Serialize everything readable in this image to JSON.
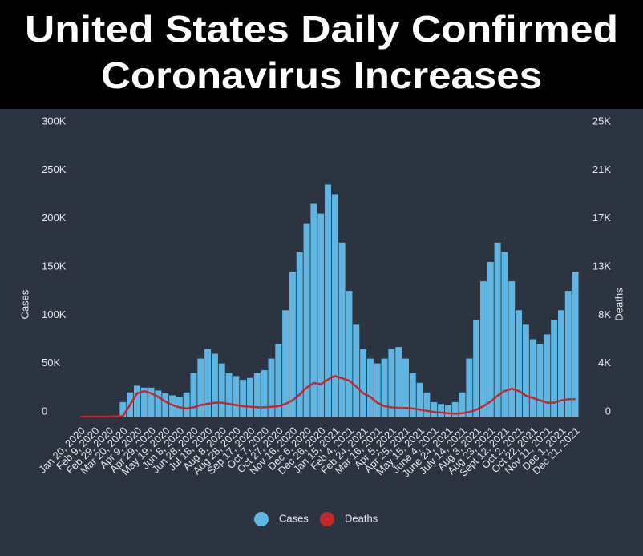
{
  "chart_data": {
    "type": "combo",
    "title_lines": [
      "United States Daily Confirmed",
      "Coronavirus Increases"
    ],
    "y_label": "Cases",
    "y2_label": "Deaths",
    "categories": [
      "Jan 20, 2020",
      null,
      "Feb 9, 2020",
      null,
      "Feb 29, 2020",
      null,
      "Mar 20, 2020",
      null,
      "Apr 9, 2020",
      null,
      "Apr 29, 2020",
      null,
      "May 19, 2020",
      null,
      "Jun 8, 2020",
      null,
      "Jun 28, 2020",
      null,
      "Jul 18, 2020",
      null,
      "Aug 8, 2020",
      null,
      "Aug 28, 2020",
      null,
      "Sep 17, 2020",
      null,
      "Oct 7, 2020",
      null,
      "Oct 27, 2020",
      null,
      "Nov 16, 2020",
      null,
      "Dec 6, 2020",
      null,
      "Dec 26, 2020",
      null,
      "Jan 15, 2021",
      null,
      "Feb 4, 2021",
      null,
      "Feb 24, 2021",
      null,
      "Mar 16, 2021",
      null,
      "Apr 5, 2021",
      null,
      "Apr 25, 2021",
      null,
      "May 15, 2021",
      null,
      "June 4, 2021",
      null,
      "June 24, 2021",
      null,
      "July 14, 2021",
      null,
      "Aug 3, 2021",
      null,
      "Aug 23, 2021",
      null,
      "Sept 12, 2021",
      null,
      "Oct 2, 2021",
      null,
      "Oct 22, 2021",
      null,
      "Nov 11, 2021",
      null,
      "Dec 1, 2021",
      null,
      "Dec 21, 2021"
    ],
    "series": [
      {
        "name": "Cases",
        "type": "bar",
        "axis": "y",
        "color": "#5fb6e3",
        "values": [
          0,
          0,
          0,
          0,
          0,
          1000,
          15000,
          25000,
          32000,
          30000,
          30000,
          27000,
          24000,
          22000,
          20000,
          25000,
          45000,
          60000,
          70000,
          65000,
          55000,
          45000,
          42000,
          38000,
          40000,
          45000,
          48000,
          60000,
          75000,
          110000,
          150000,
          170000,
          200000,
          220000,
          210000,
          240000,
          230000,
          180000,
          130000,
          95000,
          70000,
          60000,
          55000,
          60000,
          70000,
          72000,
          60000,
          45000,
          35000,
          25000,
          15000,
          13000,
          12000,
          15000,
          25000,
          60000,
          100000,
          140000,
          160000,
          180000,
          170000,
          140000,
          110000,
          95000,
          80000,
          75000,
          85000,
          100000,
          110000,
          130000,
          150000
        ]
      },
      {
        "name": "Deaths",
        "type": "line",
        "axis": "y2",
        "color": "#c3272b",
        "values": [
          0,
          0,
          0,
          0,
          0,
          0,
          50,
          1000,
          2000,
          2200,
          2000,
          1700,
          1300,
          1000,
          800,
          700,
          800,
          1000,
          1100,
          1200,
          1200,
          1100,
          1000,
          900,
          850,
          800,
          800,
          850,
          900,
          1100,
          1400,
          1900,
          2500,
          2900,
          2800,
          3200,
          3500,
          3300,
          3100,
          2600,
          2000,
          1700,
          1200,
          900,
          800,
          750,
          750,
          700,
          600,
          500,
          400,
          350,
          300,
          250,
          300,
          400,
          600,
          900,
          1300,
          1800,
          2200,
          2400,
          2200,
          1800,
          1600,
          1400,
          1200,
          1200,
          1400,
          1500,
          1500
        ]
      }
    ],
    "ylim": [
      0,
      300000
    ],
    "yticks": [
      0,
      {
        "value": 50000,
        "label": "50K"
      },
      {
        "value": 100000,
        "label": "100K"
      },
      {
        "value": 150000,
        "label": "150K"
      },
      {
        "value": 200000,
        "label": "200K"
      },
      {
        "value": 250000,
        "label": "250K"
      },
      {
        "value": 300000,
        "label": "300K"
      }
    ],
    "y2lim": [
      0,
      25000
    ],
    "y2ticks": [
      0,
      {
        "value": 4167,
        "label": "4K"
      },
      {
        "value": 8333,
        "label": "8K"
      },
      {
        "value": 12500,
        "label": "13K"
      },
      {
        "value": 16667,
        "label": "17K"
      },
      {
        "value": 20833,
        "label": "21K"
      },
      {
        "value": 25000,
        "label": "25K"
      }
    ],
    "grid": false,
    "legend": "bottom"
  }
}
